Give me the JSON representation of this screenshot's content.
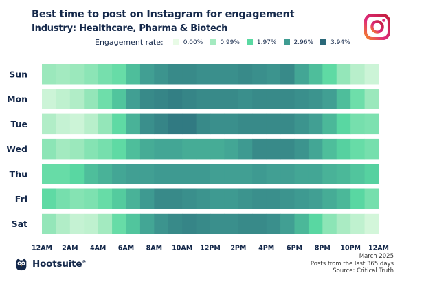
{
  "chart_data": {
    "type": "heatmap",
    "title": "Best time to post on Instagram for engagement",
    "subtitle": "Industry: Healthcare, Pharma & Biotech",
    "legend_title": "Engagement rate:",
    "legend_levels": [
      "0.00%",
      "0.99%",
      "1.97%",
      "2.96%",
      "3.94%"
    ],
    "legend_colors": [
      "#e8fbe6",
      "#a4eac0",
      "#5ad9a2",
      "#3f9c92",
      "#2a6879"
    ],
    "days": [
      "Sun",
      "Mon",
      "Tue",
      "Wed",
      "Thu",
      "Fri",
      "Sat"
    ],
    "x_tick_labels": [
      "12AM",
      "2AM",
      "4AM",
      "6AM",
      "8AM",
      "10AM",
      "12PM",
      "2PM",
      "4PM",
      "6PM",
      "8PM",
      "10PM",
      "12AM"
    ],
    "hours": 24,
    "values": [
      [
        1.1,
        1.0,
        1.1,
        1.3,
        1.6,
        1.8,
        2.4,
        2.9,
        3.1,
        3.3,
        3.3,
        3.2,
        3.2,
        3.2,
        3.3,
        3.2,
        3.1,
        3.3,
        2.8,
        2.4,
        1.9,
        1.2,
        0.7,
        0.4
      ],
      [
        0.4,
        0.6,
        0.8,
        1.2,
        1.7,
        2.3,
        2.9,
        3.3,
        3.4,
        3.5,
        3.4,
        3.3,
        3.3,
        3.3,
        3.2,
        3.3,
        3.3,
        3.3,
        3.2,
        3.1,
        2.9,
        2.4,
        1.7,
        1.1
      ],
      [
        0.8,
        0.5,
        0.4,
        0.7,
        1.2,
        1.9,
        2.6,
        3.2,
        3.4,
        3.6,
        3.6,
        3.3,
        3.2,
        3.2,
        3.3,
        3.3,
        3.3,
        3.3,
        3.1,
        2.9,
        2.5,
        2.0,
        1.6,
        1.5
      ],
      [
        1.3,
        1.0,
        1.1,
        1.4,
        1.6,
        1.9,
        2.4,
        2.7,
        2.8,
        2.8,
        2.7,
        2.7,
        2.7,
        2.8,
        3.0,
        3.3,
        3.3,
        3.3,
        3.1,
        2.8,
        2.4,
        2.1,
        1.8,
        1.6
      ],
      [
        1.8,
        1.8,
        2.0,
        2.4,
        2.6,
        2.8,
        2.9,
        2.9,
        3.0,
        3.0,
        3.0,
        3.0,
        2.9,
        2.9,
        2.9,
        3.0,
        2.9,
        2.9,
        2.8,
        2.8,
        2.6,
        2.5,
        2.3,
        2.1
      ],
      [
        1.9,
        1.6,
        1.4,
        1.5,
        1.8,
        2.2,
        2.6,
        3.0,
        3.3,
        3.3,
        3.2,
        3.1,
        3.0,
        3.0,
        3.1,
        3.2,
        3.2,
        3.1,
        3.0,
        2.9,
        2.7,
        2.5,
        2.0,
        1.6
      ],
      [
        1.2,
        0.8,
        0.5,
        0.6,
        1.0,
        1.8,
        2.3,
        2.8,
        3.1,
        3.3,
        3.4,
        3.3,
        3.2,
        3.2,
        3.3,
        3.3,
        3.2,
        2.9,
        2.5,
        2.0,
        1.3,
        0.9,
        0.6,
        0.3
      ]
    ],
    "vmin": 0,
    "vmax": 3.94
  },
  "footer": {
    "brand": "Hootsuite",
    "trademark": "®",
    "date": "March 2025",
    "note": "Posts from the last 365 days",
    "source": "Source: Critical Truth"
  }
}
